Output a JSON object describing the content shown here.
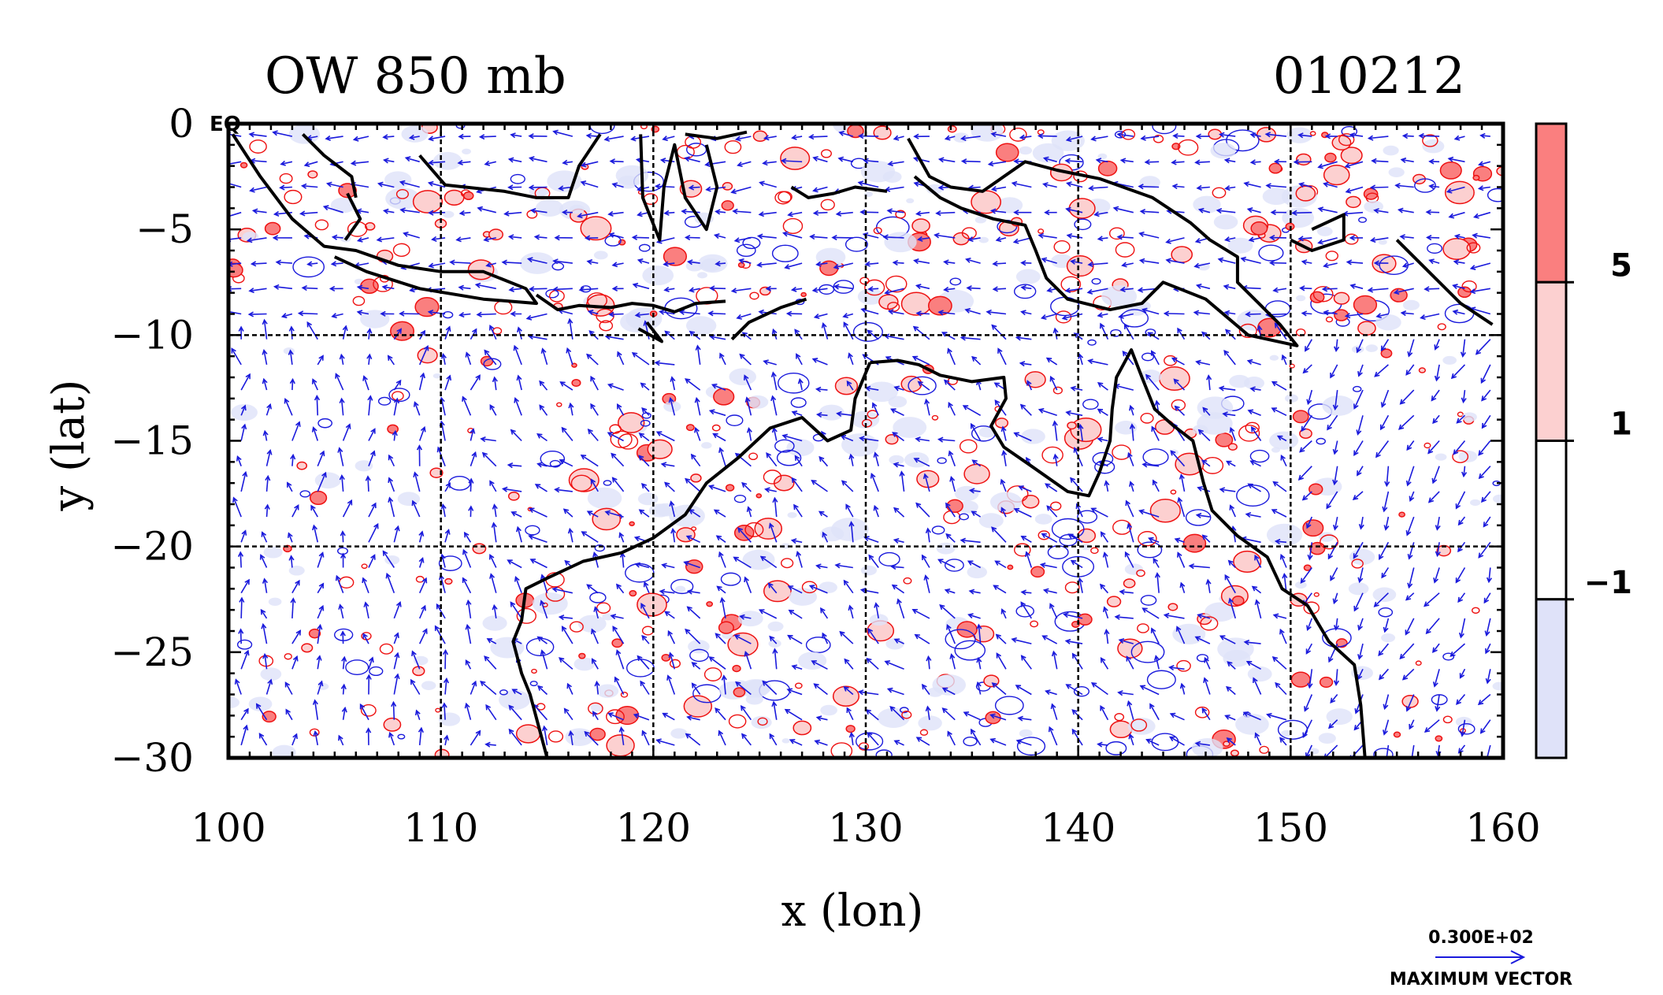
{
  "chart_data": {
    "type": "heatmap",
    "title": "OW 850 mb",
    "date_label": "010212",
    "xlabel": "x (lon)",
    "ylabel": "y (lat)",
    "xlim": [
      100,
      160
    ],
    "ylim": [
      -30,
      0
    ],
    "x_ticks": [
      100,
      110,
      120,
      130,
      140,
      150,
      160
    ],
    "y_ticks": [
      0,
      -5,
      -10,
      -15,
      -20,
      -25,
      -30
    ],
    "x_tick_labels": [
      "100",
      "110",
      "120",
      "130",
      "140",
      "150",
      "160"
    ],
    "y_tick_labels": [
      "0",
      "−5",
      "−10",
      "−15",
      "−20",
      "−25",
      "−30"
    ],
    "corner_label": "EQ",
    "grid": true,
    "grid_lines_x": [
      110,
      120,
      130,
      140,
      150
    ],
    "grid_lines_y": [
      -10,
      -20
    ],
    "colorbar": {
      "levels": [
        -1,
        1,
        5
      ],
      "labels": [
        "5",
        "1",
        "−1"
      ],
      "colors": [
        "#fa7f7f",
        "#fcd0d0",
        "#ffffff",
        "#dfe2f9"
      ]
    },
    "contour_colors": {
      "positive": "#ee1111",
      "negative": "#1a1adc"
    },
    "vector_color": "#1a1adc",
    "coastline_color": "#000000",
    "vector_key": {
      "magnitude": "0.300E+02",
      "label": "MAXIMUM VECTOR"
    },
    "coastlines": [
      [
        [
          100.2,
          -0.5
        ],
        [
          101.5,
          -2.5
        ],
        [
          103,
          -4.5
        ],
        [
          104.5,
          -5.8
        ],
        [
          106,
          -6
        ],
        [
          108,
          -6.7
        ],
        [
          110,
          -7
        ],
        [
          112,
          -7
        ],
        [
          114,
          -7.8
        ],
        [
          114.5,
          -8.5
        ],
        [
          112,
          -8.3
        ],
        [
          109,
          -7.8
        ],
        [
          106.5,
          -7
        ],
        [
          105,
          -6.3
        ]
      ],
      [
        [
          103.5,
          -0.5
        ],
        [
          104.5,
          -1.5
        ],
        [
          105.8,
          -2.5
        ],
        [
          106,
          -3.5
        ]
      ],
      [
        [
          105.5,
          -5.5
        ],
        [
          106.2,
          -4.5
        ],
        [
          105.6,
          -3.3
        ]
      ],
      [
        [
          109,
          -1.5
        ],
        [
          110.2,
          -2.9
        ],
        [
          113,
          -3.2
        ],
        [
          114.5,
          -3.5
        ],
        [
          116,
          -3.5
        ],
        [
          116.5,
          -2
        ],
        [
          117.5,
          -0.5
        ]
      ],
      [
        [
          114.5,
          -8.1
        ],
        [
          115.5,
          -8.8
        ],
        [
          116.5,
          -8.6
        ],
        [
          118,
          -8.7
        ],
        [
          119,
          -8.5
        ],
        [
          120,
          -8.6
        ],
        [
          121,
          -8.9
        ],
        [
          122,
          -8.5
        ],
        [
          123.4,
          -8.4
        ]
      ],
      [
        [
          119.3,
          -9.7
        ],
        [
          120.4,
          -10.3
        ],
        [
          119.7,
          -9.4
        ]
      ],
      [
        [
          123.7,
          -10.2
        ],
        [
          124.5,
          -9.4
        ],
        [
          126,
          -8.7
        ],
        [
          127.2,
          -8.3
        ]
      ],
      [
        [
          119.4,
          -0.5
        ],
        [
          119.5,
          -3.5
        ],
        [
          120.3,
          -5.5
        ],
        [
          120.5,
          -3
        ],
        [
          121,
          -1
        ],
        [
          121.5,
          -3.5
        ],
        [
          122.5,
          -5
        ],
        [
          123,
          -3
        ],
        [
          122.5,
          -1
        ]
      ],
      [
        [
          121.5,
          -0.5
        ],
        [
          123,
          -0.7
        ],
        [
          124.4,
          -0.4
        ]
      ],
      [
        [
          126.5,
          -3
        ],
        [
          127.3,
          -3.5
        ],
        [
          128.5,
          -3.3
        ],
        [
          129.5,
          -3
        ],
        [
          131,
          -3.2
        ]
      ],
      [
        [
          132,
          -0.7
        ],
        [
          133,
          -2.5
        ],
        [
          134,
          -3
        ],
        [
          135.5,
          -3.2
        ],
        [
          137.5,
          -1.8
        ],
        [
          139,
          -2.2
        ],
        [
          141,
          -2.6
        ],
        [
          143.5,
          -3.5
        ],
        [
          145.3,
          -4.7
        ],
        [
          146.2,
          -5.5
        ],
        [
          147.5,
          -6.3
        ],
        [
          147.5,
          -7.5
        ],
        [
          148.5,
          -8.5
        ],
        [
          149.5,
          -9.5
        ],
        [
          150.3,
          -10.5
        ],
        [
          148,
          -10
        ],
        [
          146,
          -8.3
        ],
        [
          144,
          -7.5
        ],
        [
          143,
          -8.5
        ],
        [
          141.5,
          -8.8
        ],
        [
          139.5,
          -8.3
        ],
        [
          138.5,
          -7.3
        ],
        [
          138,
          -6
        ],
        [
          137.5,
          -4.8
        ],
        [
          136,
          -4.5
        ],
        [
          134.5,
          -4
        ],
        [
          133.5,
          -3.5
        ],
        [
          132.3,
          -2.5
        ]
      ],
      [
        [
          151,
          -5
        ],
        [
          152.5,
          -4.3
        ],
        [
          152.5,
          -5.5
        ],
        [
          151,
          -6
        ],
        [
          150,
          -5.5
        ]
      ],
      [
        [
          155,
          -5.5
        ],
        [
          156.5,
          -7
        ],
        [
          158,
          -8.5
        ],
        [
          159.5,
          -9.5
        ]
      ],
      [
        [
          130.2,
          -11.3
        ],
        [
          131.5,
          -11.2
        ],
        [
          132.5,
          -11.4
        ],
        [
          133.5,
          -11.9
        ],
        [
          135,
          -12.2
        ],
        [
          136.5,
          -12
        ],
        [
          136.6,
          -13
        ],
        [
          135.9,
          -14.3
        ],
        [
          136.5,
          -15.3
        ],
        [
          137.8,
          -16.2
        ],
        [
          139.5,
          -17.4
        ],
        [
          140.5,
          -17.6
        ],
        [
          141,
          -16.5
        ],
        [
          141.5,
          -15
        ],
        [
          141.6,
          -13.5
        ],
        [
          141.8,
          -12
        ],
        [
          142.5,
          -10.7
        ],
        [
          143,
          -12
        ],
        [
          143.6,
          -13.5
        ],
        [
          144.5,
          -14.3
        ],
        [
          145.4,
          -15
        ],
        [
          145.9,
          -17
        ],
        [
          146.3,
          -18.3
        ],
        [
          147.5,
          -19.5
        ],
        [
          148.9,
          -20.5
        ],
        [
          149.6,
          -22
        ],
        [
          150.8,
          -22.8
        ],
        [
          151.8,
          -24.5
        ],
        [
          153,
          -25.6
        ],
        [
          153.3,
          -27.5
        ],
        [
          153.5,
          -30
        ]
      ],
      [
        [
          130.2,
          -11.3
        ],
        [
          129.5,
          -13
        ],
        [
          129.3,
          -14.5
        ],
        [
          128.2,
          -15
        ],
        [
          127,
          -13.9
        ],
        [
          125.5,
          -14.4
        ],
        [
          124,
          -15.8
        ],
        [
          122.5,
          -17
        ],
        [
          121.5,
          -18.5
        ],
        [
          120,
          -19.6
        ],
        [
          118.5,
          -20.3
        ],
        [
          116.7,
          -20.7
        ],
        [
          115,
          -21.5
        ],
        [
          114,
          -22
        ],
        [
          113.8,
          -23.5
        ],
        [
          113.4,
          -24.5
        ],
        [
          113.8,
          -26
        ],
        [
          114.2,
          -27
        ],
        [
          114.6,
          -28.5
        ],
        [
          115,
          -30
        ]
      ]
    ]
  }
}
